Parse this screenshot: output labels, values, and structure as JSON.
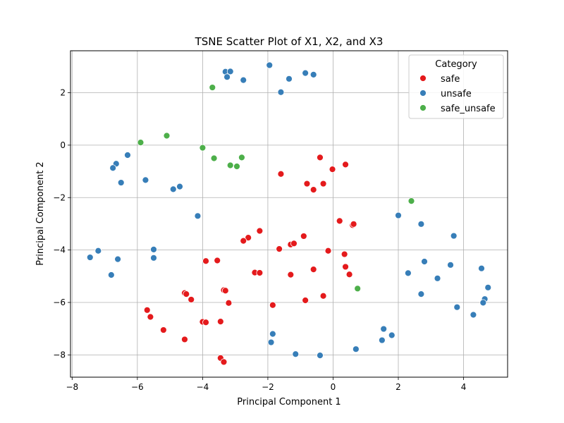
{
  "chart_data": {
    "type": "scatter",
    "title": "TSNE Scatter Plot of X1, X2, and X3",
    "xlabel": "Principal Component 1",
    "ylabel": "Principal Component 2",
    "xlim": [
      -8.05,
      5.35
    ],
    "ylim": [
      -8.85,
      3.6
    ],
    "xticks": [
      -8,
      -6,
      -4,
      -2,
      0,
      2,
      4
    ],
    "yticks": [
      -8,
      -6,
      -4,
      -2,
      0,
      2
    ],
    "grid": true,
    "legend": {
      "title": "Category",
      "position": "top-right"
    },
    "series": [
      {
        "name": "safe",
        "color": "#e41a1c",
        "points": [
          [
            -0.4,
            -0.47
          ],
          [
            0.38,
            -0.74
          ],
          [
            -0.02,
            -0.92
          ],
          [
            -1.6,
            -1.1
          ],
          [
            -0.8,
            -1.47
          ],
          [
            -0.3,
            -1.47
          ],
          [
            -0.6,
            -1.7
          ],
          [
            0.2,
            -2.89
          ],
          [
            0.6,
            -3.05
          ],
          [
            0.63,
            -3.01
          ],
          [
            -2.25,
            -3.27
          ],
          [
            -2.6,
            -3.53
          ],
          [
            -2.75,
            -3.65
          ],
          [
            -1.3,
            -3.79
          ],
          [
            -1.2,
            -3.75
          ],
          [
            -1.65,
            -3.96
          ],
          [
            -0.9,
            -3.47
          ],
          [
            -0.15,
            -4.03
          ],
          [
            0.35,
            -4.16
          ],
          [
            -3.9,
            -4.42
          ],
          [
            -3.55,
            -4.4
          ],
          [
            0.38,
            -4.64
          ],
          [
            -0.6,
            -4.74
          ],
          [
            0.5,
            -4.93
          ],
          [
            -2.4,
            -4.86
          ],
          [
            -2.25,
            -4.87
          ],
          [
            -1.3,
            -4.94
          ],
          [
            -3.35,
            -5.53
          ],
          [
            -3.3,
            -5.55
          ],
          [
            -0.3,
            -5.75
          ],
          [
            -4.55,
            -5.64
          ],
          [
            -4.5,
            -5.68
          ],
          [
            -4.35,
            -5.89
          ],
          [
            -0.85,
            -5.92
          ],
          [
            -3.2,
            -6.02
          ],
          [
            -1.85,
            -6.1
          ],
          [
            -5.7,
            -6.29
          ],
          [
            -5.6,
            -6.55
          ],
          [
            -4.0,
            -6.74
          ],
          [
            -3.9,
            -6.76
          ],
          [
            -3.45,
            -6.73
          ],
          [
            -5.2,
            -7.05
          ],
          [
            -4.55,
            -7.41
          ],
          [
            -3.45,
            -8.12
          ],
          [
            -3.35,
            -8.27
          ]
        ]
      },
      {
        "name": "unsafe",
        "color": "#377eb8",
        "points": [
          [
            -3.3,
            2.8
          ],
          [
            -3.15,
            2.81
          ],
          [
            -3.25,
            2.6
          ],
          [
            -2.75,
            2.48
          ],
          [
            -1.95,
            3.05
          ],
          [
            -1.35,
            2.53
          ],
          [
            -0.85,
            2.75
          ],
          [
            -0.6,
            2.69
          ],
          [
            -1.6,
            2.02
          ],
          [
            -6.3,
            -0.38
          ],
          [
            -6.65,
            -0.71
          ],
          [
            -6.75,
            -0.87
          ],
          [
            -6.5,
            -1.43
          ],
          [
            -5.75,
            -1.33
          ],
          [
            -4.7,
            -1.58
          ],
          [
            -4.9,
            -1.68
          ],
          [
            -4.15,
            -2.7
          ],
          [
            2.0,
            -2.68
          ],
          [
            2.7,
            -3.01
          ],
          [
            3.7,
            -3.46
          ],
          [
            -7.2,
            -4.03
          ],
          [
            -5.5,
            -3.98
          ],
          [
            -7.45,
            -4.28
          ],
          [
            -6.6,
            -4.35
          ],
          [
            -5.5,
            -4.3
          ],
          [
            2.8,
            -4.44
          ],
          [
            3.6,
            -4.57
          ],
          [
            4.55,
            -4.7
          ],
          [
            2.3,
            -4.88
          ],
          [
            3.2,
            -5.08
          ],
          [
            -6.8,
            -4.95
          ],
          [
            4.75,
            -5.43
          ],
          [
            2.7,
            -5.68
          ],
          [
            4.65,
            -5.87
          ],
          [
            4.6,
            -6.01
          ],
          [
            3.8,
            -6.18
          ],
          [
            4.3,
            -6.47
          ],
          [
            1.55,
            -7.01
          ],
          [
            1.8,
            -7.25
          ],
          [
            -1.85,
            -7.2
          ],
          [
            1.5,
            -7.44
          ],
          [
            -1.9,
            -7.52
          ],
          [
            0.7,
            -7.78
          ],
          [
            -1.15,
            -7.97
          ],
          [
            -0.4,
            -8.02
          ]
        ]
      },
      {
        "name": "safe_unsafe",
        "color": "#4daf4a",
        "points": [
          [
            -3.7,
            2.2
          ],
          [
            -5.9,
            0.1
          ],
          [
            -5.1,
            0.36
          ],
          [
            -4.0,
            -0.1
          ],
          [
            -3.65,
            -0.5
          ],
          [
            -2.8,
            -0.47
          ],
          [
            -3.15,
            -0.77
          ],
          [
            -2.95,
            -0.81
          ],
          [
            2.4,
            -2.13
          ],
          [
            0.75,
            -5.47
          ]
        ]
      }
    ]
  }
}
